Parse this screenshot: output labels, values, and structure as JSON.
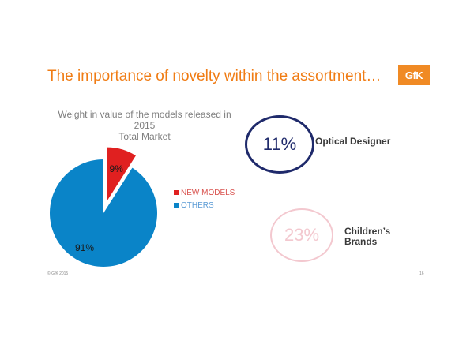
{
  "slide": {
    "title": "The importance of novelty within the assortment…",
    "logo_text": "GfK",
    "footer_left": "© GfK 2015",
    "page_number": "16"
  },
  "chart_data": {
    "type": "pie",
    "title_lines": [
      "Weight in value of the models released in 2015",
      "Total Market"
    ],
    "slices": [
      {
        "name": "NEW MODELS",
        "value": 9,
        "label": "9%",
        "color": "#e02020",
        "exploded": true
      },
      {
        "name": "OTHERS",
        "value": 91,
        "label": "91%",
        "color": "#0a84c8",
        "exploded": false
      }
    ],
    "legend_position": "right"
  },
  "kpis": [
    {
      "value": "11%",
      "label_lines": [
        "Optical Designer"
      ],
      "color": "#1f2a6b"
    },
    {
      "value": "23%",
      "label_lines": [
        "Children’s",
        "Brands"
      ],
      "color": "#f3c8cf"
    }
  ]
}
